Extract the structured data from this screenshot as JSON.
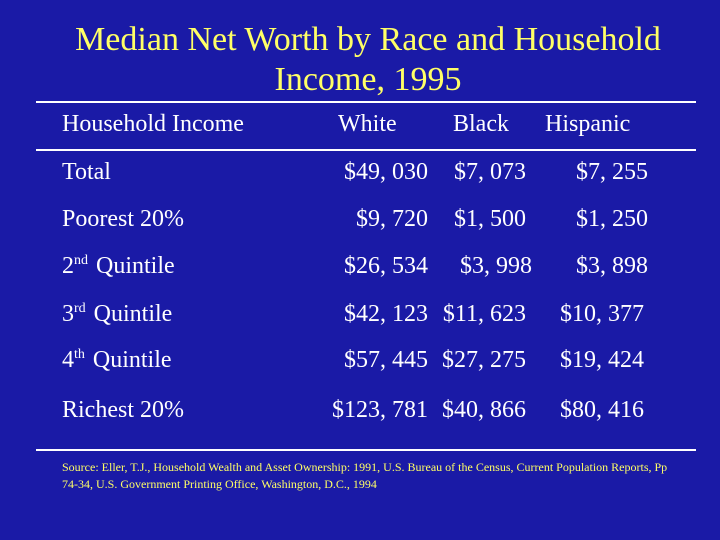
{
  "title_line1": "Median Net Worth by Race and Household",
  "title_line2": "Income, 1995",
  "headers": {
    "label": "Household Income",
    "white": "White",
    "black": "Black",
    "hispanic": "Hispanic"
  },
  "rows": [
    {
      "label": "Total",
      "white": "$49, 030",
      "black": "$7, 073",
      "hispanic": "$7, 255"
    },
    {
      "label": "Poorest 20%",
      "white": "$9, 720",
      "black": "$1, 500",
      "hispanic": "$1, 250"
    },
    {
      "label_prefix": "2",
      "label_sup": "nd",
      "label": "Quintile",
      "white": "$26, 534",
      "black": "$3, 998",
      "hispanic": "$3, 898"
    },
    {
      "label_prefix": "3",
      "label_sup": "rd",
      "label": "Quintile",
      "white": "$42, 123",
      "black": "$11, 623",
      "hispanic": "$10, 377"
    },
    {
      "label_prefix": "4",
      "label_sup": "th",
      "label": "Quintile",
      "white": "$57, 445",
      "black": "$27, 275",
      "hispanic": "$19, 424"
    },
    {
      "label": "Richest 20%",
      "white": "$123, 781",
      "black": "$40, 866",
      "hispanic": "$80, 416"
    }
  ],
  "source": "Source: Eller, T.J., Household Wealth and Asset Ownership: 1991, U.S. Bureau of the Census, Current Population Reports, Pp 74-34, U.S. Government Printing Office, Washington, D.C., 1994",
  "colors": {
    "background": "#1a1aa6",
    "title": "#ffff66",
    "text": "#ffffff",
    "source": "#ffff66"
  }
}
